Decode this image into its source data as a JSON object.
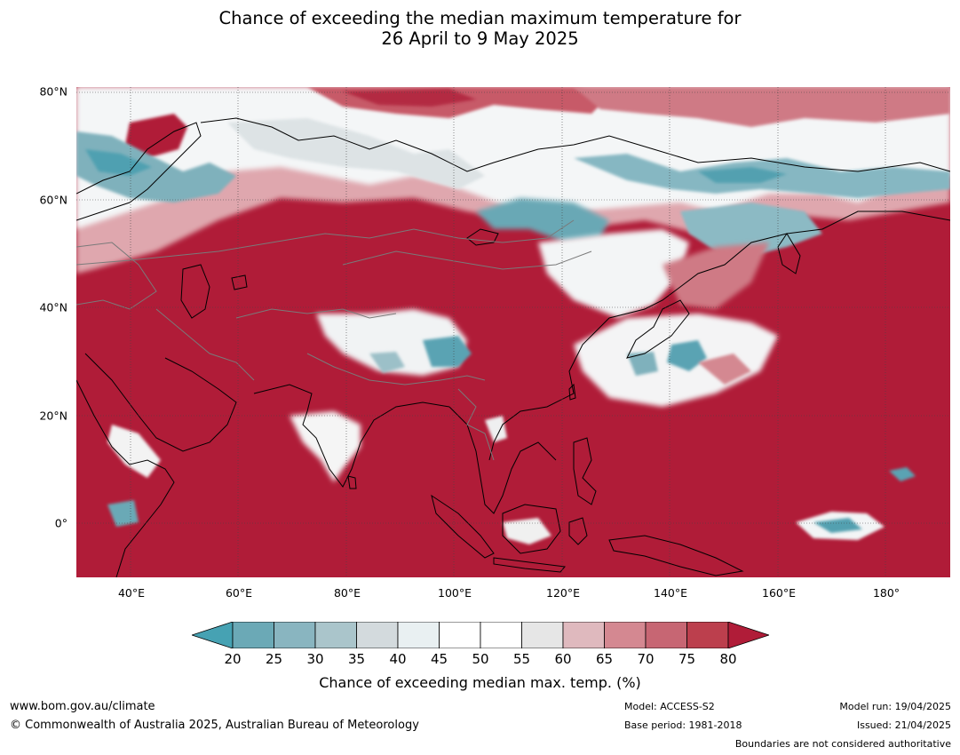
{
  "title": {
    "line1": "Chance of exceeding the median maximum temperature for",
    "line2": "26 April to 9 May 2025"
  },
  "map": {
    "region": "Asia and western Pacific",
    "projection": "equirectangular",
    "lon_range": [
      30,
      192
    ],
    "lat_range": [
      -10,
      81
    ],
    "background_color": "#b01c38",
    "lat_labels": [
      "80°N",
      "60°N",
      "40°N",
      "20°N",
      "0°"
    ],
    "lon_labels": [
      "40°E",
      "60°E",
      "80°E",
      "100°E",
      "120°E",
      "140°E",
      "160°E",
      "180°"
    ],
    "gridlines": true
  },
  "colorbar": {
    "ticks": [
      "20",
      "25",
      "30",
      "35",
      "40",
      "45",
      "50",
      "55",
      "60",
      "65",
      "70",
      "75",
      "80"
    ],
    "colors": [
      "#46a2b3",
      "#6ba9b6",
      "#89b5c0",
      "#aac5cb",
      "#d3dadd",
      "#e9f0f2",
      "#ffffff",
      "#ffffff",
      "#e6e6e6",
      "#dfb9be",
      "#d48891",
      "#c76673",
      "#bc3f4d",
      "#b01c38"
    ],
    "extend": "both",
    "label": "Chance of exceeding median max. temp. (%)"
  },
  "footer": {
    "url": "www.bom.gov.au/climate",
    "copyright": "© Commonwealth of Australia 2025, Australian Bureau of Meteorology",
    "model": "Model: ACCESS-S2",
    "base_period": "Base period: 1981-2018",
    "model_run": "Model run: 19/04/2025",
    "issued": "Issued: 21/04/2025",
    "disclaimer": "Boundaries are not considered authoritative"
  }
}
